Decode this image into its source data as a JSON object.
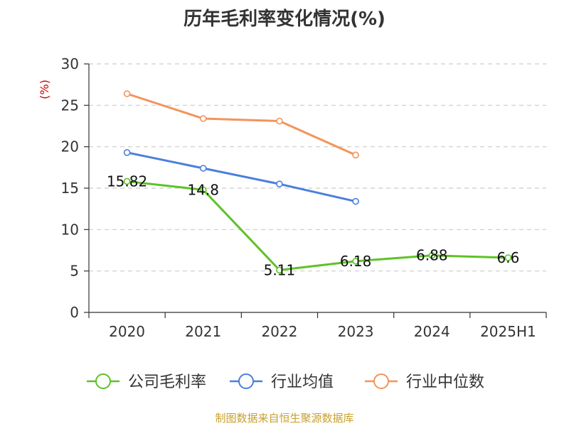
{
  "header": {
    "title": "历年毛利率变化情况(%)"
  },
  "footer": {
    "source": "制图数据来自恒生聚源数据库"
  },
  "colors": {
    "company": "#5ec227",
    "industry_avg": "#4a7fdc",
    "industry_median": "#f4935a",
    "unit_label": "#cc0000",
    "grid": "#cccccc",
    "axis": "#333333"
  },
  "chart_data": {
    "type": "line",
    "title": "历年毛利率变化情况(%)",
    "ylabel": "(%)",
    "xlabel": "",
    "categories": [
      "2020",
      "2021",
      "2022",
      "2023",
      "2024",
      "2025H1"
    ],
    "ylim": [
      0,
      30
    ],
    "yticks": [
      0,
      5,
      10,
      15,
      20,
      25,
      30
    ],
    "grid": true,
    "legend_position": "bottom",
    "series": [
      {
        "name": "公司毛利率",
        "color": "#5ec227",
        "values": [
          15.82,
          14.8,
          5.11,
          6.18,
          6.88,
          6.6
        ],
        "labels": [
          "15.82",
          "14.8",
          "5.11",
          "6.18",
          "6.88",
          "6.6"
        ]
      },
      {
        "name": "行业均值",
        "color": "#4a7fdc",
        "values": [
          19.3,
          17.4,
          15.5,
          13.4,
          null,
          null
        ]
      },
      {
        "name": "行业中位数",
        "color": "#f4935a",
        "values": [
          26.4,
          23.4,
          23.1,
          19.0,
          null,
          null
        ]
      }
    ]
  }
}
